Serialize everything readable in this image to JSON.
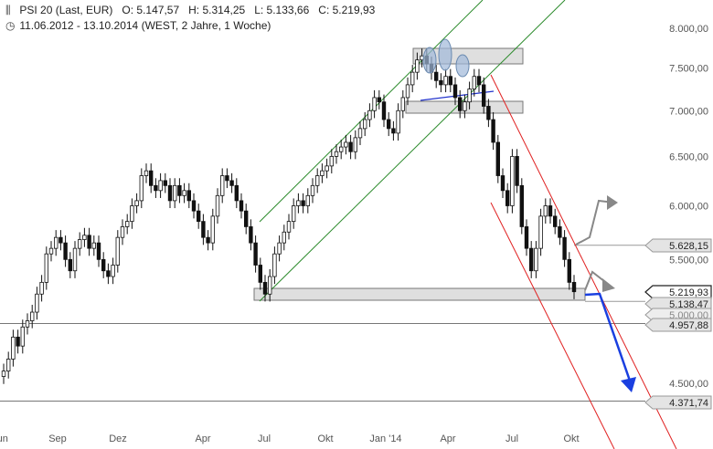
{
  "header": {
    "instrument": "PSI 20 (Last, EUR)",
    "open": "O: 5.147,57",
    "high": "H: 5.314,25",
    "low": "L: 5.133,66",
    "close": "C: 5.219,93",
    "range": "11.06.2012 - 13.10.2014 (WEST, 2 Jahre, 1 Woche)"
  },
  "chart_data": {
    "type": "candlestick",
    "y_ticks": [
      "8.000,00",
      "7.500,00",
      "7.000,00",
      "6.500,00",
      "6.000,00",
      "5.500,00",
      "4.500,00"
    ],
    "y_tick_values": [
      8000,
      7500,
      7000,
      6500,
      6000,
      5500,
      4500
    ],
    "x_ticks": [
      "Jun",
      "Sep",
      "Dez",
      "Apr",
      "Jul",
      "Okt",
      "Jan '14",
      "Apr",
      "Jul",
      "Okt"
    ],
    "ylim": [
      4300,
      8200
    ],
    "price_tags": [
      {
        "label": "5.628,15",
        "value": 5628.15,
        "style": "gray"
      },
      {
        "label": "5.219,93",
        "value": 5219.93,
        "style": "dark"
      },
      {
        "label": "5.138,47",
        "value": 5138.47,
        "style": "gray"
      },
      {
        "label": "5.000,00",
        "value": 5000,
        "style": "faded"
      },
      {
        "label": "4.957,88",
        "value": 4957.88,
        "style": "gray"
      },
      {
        "label": "4.371,74",
        "value": 4371.74,
        "style": "gray"
      }
    ],
    "weekly_closes": [
      4590,
      4680,
      4850,
      4780,
      4930,
      4980,
      5050,
      5200,
      5300,
      5550,
      5600,
      5700,
      5650,
      5500,
      5400,
      5600,
      5680,
      5720,
      5600,
      5650,
      5500,
      5400,
      5350,
      5450,
      5700,
      5800,
      5850,
      6000,
      6050,
      6300,
      6350,
      6200,
      6150,
      6250,
      6200,
      6050,
      6200,
      6100,
      6150,
      6050,
      5950,
      5850,
      5700,
      5650,
      5900,
      6100,
      6300,
      6250,
      6200,
      6050,
      5950,
      5800,
      5650,
      5450,
      5300,
      5200,
      5350,
      5550,
      5650,
      5750,
      5850,
      6000,
      6050,
      6000,
      6100,
      6200,
      6300,
      6350,
      6400,
      6500,
      6550,
      6600,
      6650,
      6550,
      6700,
      6800,
      6900,
      7000,
      7150,
      7100,
      6900,
      6800,
      6750,
      7000,
      7150,
      7300,
      7450,
      7600,
      7650,
      7550,
      7450,
      7350,
      7300,
      7400,
      7300,
      7150,
      7000,
      7100,
      7250,
      7400,
      7300,
      7050,
      6900,
      6650,
      6300,
      6150,
      6000,
      6500,
      6200,
      5800,
      5600,
      5400,
      5600,
      5900,
      6000,
      5900,
      5800,
      5700,
      5500,
      5300,
      5219.93
    ]
  }
}
